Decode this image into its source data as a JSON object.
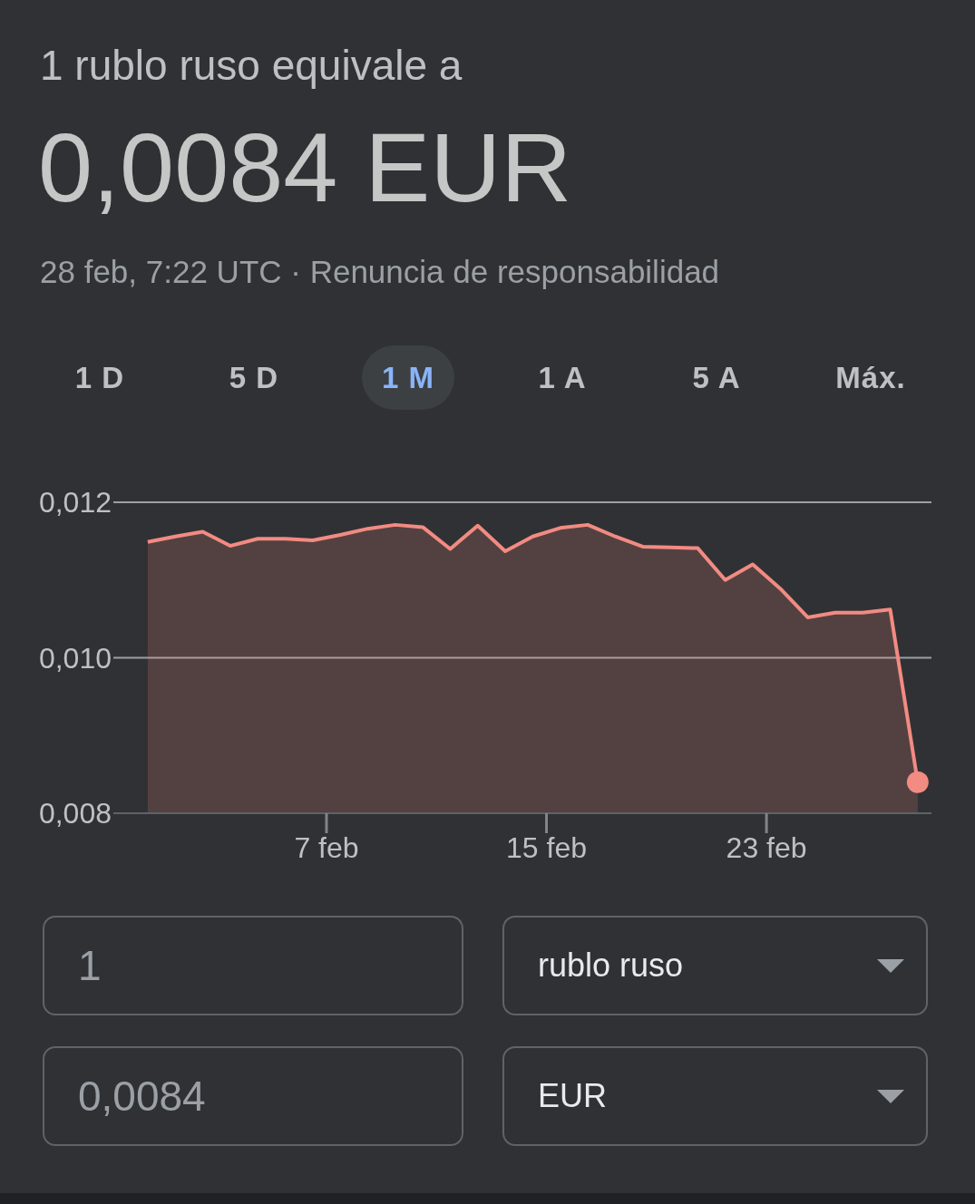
{
  "chart_data": {
    "type": "area",
    "title": "1 rublo ruso equivale a",
    "subtitle": "0,0084 EUR",
    "annotations": [
      "28 feb, 7:22 UTC · Renuncia de responsabilidad",
      "1 D",
      "5 D",
      "1 M",
      "1 A",
      "5 A",
      "Máx.",
      "1",
      "rublo ruso",
      "0,0084",
      "EUR"
    ],
    "x": [
      "--01-31T12:00",
      "--02-01T12:00",
      "--02-02T12:00",
      "--02-03T12:00",
      "--02-04T12:00",
      "--02-05T12:00",
      "--02-06T12:00",
      "--02-07T12:00",
      "--02-08T12:00",
      "--02-09T12:00",
      "--02-10T12:00",
      "--02-11T12:00",
      "--02-12T12:00",
      "--02-13T12:00",
      "--02-14T12:00",
      "--02-15T12:00",
      "--02-16T12:00",
      "--02-17T12:00",
      "--02-18T12:00",
      "--02-19T12:00",
      "--02-20T12:00",
      "--02-21T12:00",
      "--02-22T12:00",
      "--02-23T12:00",
      "--02-24T12:00",
      "--02-25T12:00",
      "--02-26T12:00",
      "--02-27T12:00",
      "--02-28T12:00"
    ],
    "series": [
      {
        "color": "#f28b82",
        "values": [
          0.01149,
          0.01156,
          0.01162,
          0.01144,
          0.01153,
          0.01153,
          0.01151,
          0.01158,
          0.01166,
          0.01171,
          0.01168,
          0.0114,
          0.0117,
          0.01137,
          0.01156,
          0.01167,
          0.01171,
          0.01156,
          0.01143,
          0.01142,
          0.01141,
          0.011,
          0.0112,
          0.01089,
          0.01052,
          0.01058,
          0.01058,
          0.01062,
          0.0084
        ]
      },
      {
        "type": "scatter",
        "color": "#f28b82",
        "marker": "circle",
        "x": [
          "--02-28T12:00"
        ],
        "values": [
          0.0084
        ]
      }
    ],
    "xlim": [
      "--01-30T06:00",
      "--03-01T00:00"
    ],
    "xticks": [
      {
        "value": "--02-07",
        "label": "7 feb"
      },
      {
        "value": "--02-15",
        "label": "15 feb"
      },
      {
        "value": "--02-23",
        "label": "23 feb"
      }
    ],
    "ylim": [
      0.008,
      0.012
    ],
    "yticks": [
      {
        "value": 0.008,
        "label": "0,008"
      },
      {
        "value": 0.01,
        "label": "0,010"
      },
      {
        "value": 0.012,
        "label": "0,012"
      }
    ],
    "grid": "y"
  }
}
